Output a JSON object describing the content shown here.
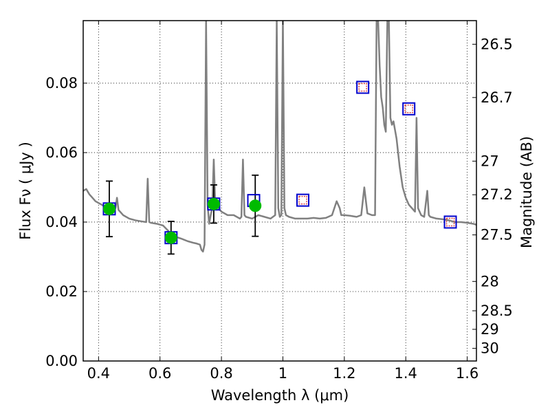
{
  "chart_data": {
    "type": "scatter",
    "x_axis": {
      "label": "Wavelength  λ (μm)",
      "range": [
        0.35,
        1.63
      ],
      "ticks": [
        {
          "value": 0.4,
          "label": "0.4"
        },
        {
          "value": 0.6,
          "label": "0.6"
        },
        {
          "value": 0.8,
          "label": "0.8"
        },
        {
          "value": 1.0,
          "label": "1"
        },
        {
          "value": 1.2,
          "label": "1.2"
        },
        {
          "value": 1.4,
          "label": "1.4"
        },
        {
          "value": 1.6,
          "label": "1.6"
        }
      ]
    },
    "y_axis": {
      "label": "Flux  Fν  ( μJy )",
      "range": [
        0.0,
        0.098
      ],
      "ticks": [
        {
          "value": 0.0,
          "label": "0.00"
        },
        {
          "value": 0.02,
          "label": "0.02"
        },
        {
          "value": 0.04,
          "label": "0.04"
        },
        {
          "value": 0.06,
          "label": "0.06"
        },
        {
          "value": 0.08,
          "label": "0.08"
        }
      ]
    },
    "y2_axis": {
      "label": "Magnitude (AB)",
      "ticks": [
        {
          "value": 26.5,
          "label": "26.5"
        },
        {
          "value": 26.7,
          "label": "26.7"
        },
        {
          "value": 27.0,
          "label": "27"
        },
        {
          "value": 27.2,
          "label": "27.2"
        },
        {
          "value": 27.5,
          "label": "27.5"
        },
        {
          "value": 28.0,
          "label": "28"
        },
        {
          "value": 28.5,
          "label": "28.5"
        },
        {
          "value": 29.0,
          "label": "29"
        },
        {
          "value": 30.0,
          "label": "30"
        }
      ]
    },
    "grid": true,
    "series": [
      {
        "type": "line",
        "color": "#808080",
        "points": [
          [
            0.35,
            0.049
          ],
          [
            0.36,
            0.0495
          ],
          [
            0.37,
            0.048
          ],
          [
            0.38,
            0.047
          ],
          [
            0.39,
            0.046
          ],
          [
            0.4,
            0.0455
          ],
          [
            0.41,
            0.045
          ],
          [
            0.42,
            0.0445
          ],
          [
            0.43,
            0.044
          ],
          [
            0.44,
            0.044
          ],
          [
            0.45,
            0.0435
          ],
          [
            0.455,
            0.044
          ],
          [
            0.46,
            0.047
          ],
          [
            0.465,
            0.0435
          ],
          [
            0.47,
            0.043
          ],
          [
            0.48,
            0.042
          ],
          [
            0.5,
            0.041
          ],
          [
            0.52,
            0.0405
          ],
          [
            0.54,
            0.0402
          ],
          [
            0.555,
            0.04
          ],
          [
            0.56,
            0.0525
          ],
          [
            0.565,
            0.04
          ],
          [
            0.57,
            0.0398
          ],
          [
            0.59,
            0.0395
          ],
          [
            0.61,
            0.039
          ],
          [
            0.63,
            0.0372
          ],
          [
            0.65,
            0.0358
          ],
          [
            0.67,
            0.0352
          ],
          [
            0.69,
            0.0345
          ],
          [
            0.71,
            0.034
          ],
          [
            0.72,
            0.0338
          ],
          [
            0.73,
            0.0335
          ],
          [
            0.735,
            0.032
          ],
          [
            0.74,
            0.0315
          ],
          [
            0.745,
            0.0335
          ],
          [
            0.75,
            0.098
          ],
          [
            0.755,
            0.045
          ],
          [
            0.76,
            0.0395
          ],
          [
            0.765,
            0.042
          ],
          [
            0.77,
            0.044
          ],
          [
            0.775,
            0.058
          ],
          [
            0.78,
            0.045
          ],
          [
            0.79,
            0.044
          ],
          [
            0.8,
            0.043
          ],
          [
            0.82,
            0.042
          ],
          [
            0.84,
            0.042
          ],
          [
            0.85,
            0.0415
          ],
          [
            0.86,
            0.041
          ],
          [
            0.865,
            0.0415
          ],
          [
            0.87,
            0.058
          ],
          [
            0.875,
            0.042
          ],
          [
            0.88,
            0.0415
          ],
          [
            0.9,
            0.041
          ],
          [
            0.92,
            0.042
          ],
          [
            0.94,
            0.0415
          ],
          [
            0.96,
            0.041
          ],
          [
            0.975,
            0.042
          ],
          [
            0.98,
            0.098
          ],
          [
            0.985,
            0.044
          ],
          [
            0.99,
            0.0415
          ],
          [
            0.995,
            0.042
          ],
          [
            1.0,
            0.098
          ],
          [
            1.005,
            0.044
          ],
          [
            1.01,
            0.042
          ],
          [
            1.02,
            0.0415
          ],
          [
            1.04,
            0.041
          ],
          [
            1.06,
            0.041
          ],
          [
            1.08,
            0.041
          ],
          [
            1.1,
            0.0412
          ],
          [
            1.12,
            0.041
          ],
          [
            1.14,
            0.0412
          ],
          [
            1.16,
            0.042
          ],
          [
            1.175,
            0.046
          ],
          [
            1.185,
            0.044
          ],
          [
            1.19,
            0.042
          ],
          [
            1.2,
            0.042
          ],
          [
            1.22,
            0.0418
          ],
          [
            1.24,
            0.0415
          ],
          [
            1.255,
            0.042
          ],
          [
            1.265,
            0.05
          ],
          [
            1.275,
            0.0425
          ],
          [
            1.29,
            0.042
          ],
          [
            1.3,
            0.042
          ],
          [
            1.305,
            0.098
          ],
          [
            1.31,
            0.098
          ],
          [
            1.315,
            0.085
          ],
          [
            1.32,
            0.076
          ],
          [
            1.325,
            0.073
          ],
          [
            1.33,
            0.068
          ],
          [
            1.335,
            0.066
          ],
          [
            1.34,
            0.098
          ],
          [
            1.345,
            0.098
          ],
          [
            1.35,
            0.07
          ],
          [
            1.355,
            0.068
          ],
          [
            1.36,
            0.069
          ],
          [
            1.37,
            0.064
          ],
          [
            1.38,
            0.056
          ],
          [
            1.39,
            0.05
          ],
          [
            1.4,
            0.047
          ],
          [
            1.41,
            0.045
          ],
          [
            1.42,
            0.044
          ],
          [
            1.43,
            0.043
          ],
          [
            1.435,
            0.07
          ],
          [
            1.44,
            0.044
          ],
          [
            1.45,
            0.042
          ],
          [
            1.46,
            0.0415
          ],
          [
            1.47,
            0.049
          ],
          [
            1.475,
            0.042
          ],
          [
            1.48,
            0.0415
          ],
          [
            1.5,
            0.041
          ],
          [
            1.52,
            0.0408
          ],
          [
            1.54,
            0.0405
          ],
          [
            1.56,
            0.04
          ],
          [
            1.58,
            0.04
          ],
          [
            1.6,
            0.0398
          ],
          [
            1.62,
            0.0395
          ],
          [
            1.63,
            0.0392
          ]
        ]
      },
      {
        "type": "scatter",
        "marker": "circle",
        "color": "#00bb00",
        "points": [
          {
            "x": 0.435,
            "y": 0.0438,
            "yerr": 0.008
          },
          {
            "x": 0.636,
            "y": 0.0355,
            "yerr": 0.0047
          },
          {
            "x": 0.775,
            "y": 0.0452,
            "yerr": 0.0055
          },
          {
            "x": 0.91,
            "y": 0.0447,
            "yerr": 0.0088
          }
        ]
      },
      {
        "type": "scatter",
        "marker": "square",
        "color": "#0000cc",
        "points": [
          {
            "x": 0.435,
            "y": 0.0438
          },
          {
            "x": 0.636,
            "y": 0.0355
          },
          {
            "x": 0.775,
            "y": 0.0452
          },
          {
            "x": 0.905,
            "y": 0.0462
          },
          {
            "x": 1.065,
            "y": 0.0463
          },
          {
            "x": 1.26,
            "y": 0.0788
          },
          {
            "x": 1.41,
            "y": 0.0726
          },
          {
            "x": 1.545,
            "y": 0.04
          }
        ]
      },
      {
        "type": "scatter",
        "marker": "dotted-square",
        "color": "#dd4444",
        "points": [
          {
            "x": 1.065,
            "y": 0.0463
          },
          {
            "x": 1.26,
            "y": 0.0788
          },
          {
            "x": 1.41,
            "y": 0.0726
          },
          {
            "x": 1.545,
            "y": 0.04
          }
        ]
      }
    ]
  }
}
